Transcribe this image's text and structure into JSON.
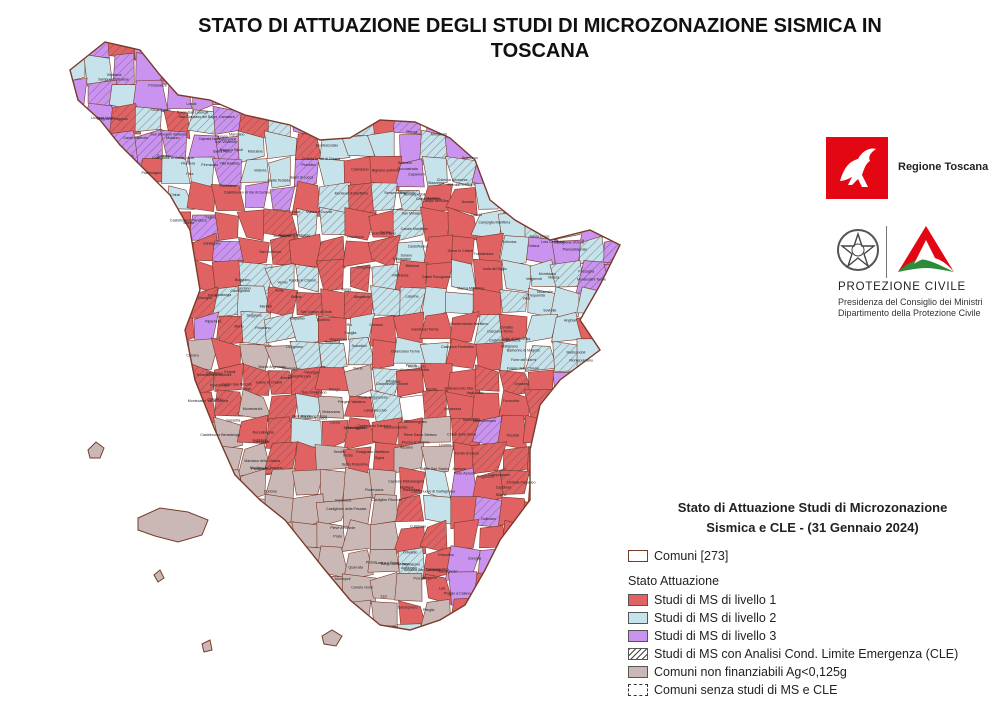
{
  "title": {
    "line1": "STATO DI ATTUAZIONE DEGLI STUDI DI MICROZONAZIONE SISMICA IN",
    "line2": "TOSCANA"
  },
  "logos": {
    "regione": {
      "name": "Regione Toscana",
      "icon": "pegasus-icon",
      "color": "#e30613"
    },
    "protezione": {
      "title": "PROTEZIONE CIVILE",
      "subtitle1": "Presidenza del Consiglio dei Ministri",
      "subtitle2": "Dipartimento della Protezione Civile",
      "icons": [
        "italian-republic-emblem-icon",
        "protezione-civile-icon"
      ]
    }
  },
  "legend": {
    "title1": "Stato di Attuazione Studi di Microzonazione",
    "title2": "Sismica e CLE - (31 Gennaio 2024)",
    "comuni_label": "Comuni [273]",
    "section_label": "Stato Attuazione",
    "items": [
      {
        "label": "Studi di MS di livello 1",
        "color": "#e06262"
      },
      {
        "label": "Studi di MS di livello 2",
        "color": "#c6e2ea"
      },
      {
        "label": "Studi di MS di livello 3",
        "color": "#c993ef"
      },
      {
        "label": "Studi di MS con Analisi Cond. Limite Emergenza (CLE)",
        "color": "hatch"
      },
      {
        "label": "Comuni non finanziabili Ag<0,125g",
        "color": "#c9b8b5"
      },
      {
        "label": "Comuni senza studi di MS e CLE",
        "color": "none"
      }
    ]
  },
  "map": {
    "status_colors": {
      "l1": "#e06262",
      "l2": "#c6e2ea",
      "l3": "#c993ef",
      "nf": "#c9b8b5",
      "none": "#ffffff",
      "border": "#7a3a2a"
    },
    "labels": [
      "Firenze",
      "Pisa",
      "Lucca",
      "Livorno",
      "Siena",
      "Arezzo",
      "Grosseto",
      "Prato",
      "Pistoia",
      "Massa",
      "Carrara",
      "Empoli",
      "Volterra",
      "Cortona",
      "Montalcino",
      "Orbetello",
      "Capalbio",
      "Piombino",
      "Follonica",
      "Montepulciano",
      "Poggibonsi",
      "Colle di Val d'Elsa",
      "Pontedera",
      "Cecina",
      "Portoferraio",
      "Massa Marittima",
      "Castiglione della Pescaia",
      "Monte Argentario",
      "Sansepolcro",
      "Bibbiena",
      "Poppi",
      "San Gimignano",
      "Capraia Isola",
      "Isola del Giglio",
      "Marciana",
      "Campo nell'Elba",
      "Porto Azzurro",
      "Rio",
      "Viareggio",
      "Pietrasanta",
      "Forte dei Marmi",
      "Barga",
      "Borgo San Lorenzo",
      "Marradi",
      "Firenzuola",
      "Castel del Piano",
      "Santa Fiora",
      "Pitigliano",
      "Sorano",
      "Chiusi",
      "Sinalunga",
      "Asciano",
      "Buonconvento",
      "Radicondoli",
      "Chiusdino",
      "Sovicille",
      "Monteriggioni",
      "Castellina in Chianti",
      "Radda in Chianti",
      "Gaiole in Chianti",
      "Bucine",
      "Montevarchi",
      "San Giovanni Valdarno",
      "Figline",
      "Pontassieve",
      "Dicomano",
      "Vicchio",
      "Scarperia",
      "Barberino di Mugello",
      "Vernio",
      "Cantagallo",
      "Sesto Fiorentino",
      "Calenzano",
      "Campi Bisenzio",
      "Scandicci",
      "Bagno a Ripoli",
      "Fiesole",
      "Greve in Chianti",
      "Impruneta",
      "Tavarnelle",
      "Certaldo",
      "Gambassi Terme",
      "Montaione",
      "Castelfiorentino",
      "Vinci",
      "Cerreto Guidi",
      "Fucecchio",
      "San Miniato",
      "Santa Croce",
      "Castelfranco",
      "Montopoli",
      "Palaia",
      "Peccioli",
      "Lajatico",
      "Terricciola",
      "Casciana Terme",
      "Lari",
      "Crespina",
      "Fauglia",
      "Collesalvetti",
      "Rosignano Marittimo",
      "Castellina Marittima",
      "Riparbella",
      "Montescudaio",
      "Guardistallo",
      "Casale Marittimo",
      "Bibbona",
      "Castagneto Carducci",
      "Sassetta",
      "Suvereto",
      "San Vincenzo",
      "Campiglia Marittima",
      "Monteverdi Marittimo",
      "Pomarance",
      "Castelnuovo di Val di Cecina",
      "Montecatini Val di Cecina",
      "Monterotondo Marittimo",
      "Montieri",
      "Roccastrada",
      "Gavorrano",
      "Scarlino",
      "Civitella Paganico",
      "Campagnatico",
      "Scansano",
      "Magliano in Toscana",
      "Manciano",
      "Semproniano",
      "Roccalbegna",
      "Arcidosso",
      "Seggiano",
      "Cinigiano",
      "Castell'Azzara",
      "Abbadia San Salvatore",
      "Piancastagnaio",
      "Radicofani",
      "San Casciano dei Bagni",
      "Cetona",
      "Sarteano",
      "Chianciano Terme",
      "Pienza",
      "San Quirico d'Orcia",
      "Castiglione d'Orcia",
      "Torrita di Siena",
      "Trequanda",
      "Rapolano Terme",
      "Castelnuovo Berardenga",
      "Monteroni d'Arbia",
      "Murlo",
      "Monticiano",
      "Foiano della Chiana",
      "Lucignano",
      "Marciano della Chiana",
      "Castiglion Fiorentino",
      "Monte San Savino",
      "Civitella in Val di Chiana",
      "Subbiano",
      "Capolona",
      "Castiglion Fibocchi",
      "Laterina",
      "Pergine Valdarno",
      "Loro Ciuffenna",
      "Terranuova Bracciolini",
      "Castelfranco Piandiscò",
      "Pratovecchio Stia",
      "Castel San Niccolò",
      "Montemignaio",
      "Ortignano Raggiolo",
      "Castel Focognano",
      "Chiusi della Verna",
      "Chitignano",
      "Caprese Michelangelo",
      "Anghiari",
      "Monterchi",
      "Pieve Santo Stefano",
      "Badia Tedalda",
      "Sestino",
      "Pratomagno",
      "Londa",
      "San Godenzo",
      "Rufina",
      "Pelago",
      "Reggello",
      "Rignano sull'Arno",
      "Incisa",
      "Cavriglia",
      "Montespertoli",
      "Lastra a Signa",
      "Signa",
      "Carmignano",
      "Poggio a Caiano",
      "Quarrata",
      "Serravalle Pistoiese",
      "Lamporecchio",
      "Larciano",
      "Monsummano",
      "Pieve a Nievole",
      "Montecatini Terme",
      "Massa e Cozzile",
      "Buggiano",
      "Uzzano",
      "Chiesina Uzzanese",
      "Ponte Buggianese",
      "Pescia",
      "Marliana",
      "Sambuca Pistoiese",
      "San Marcello",
      "Abetone",
      "Cutigliano",
      "Piteglio",
      "Bagni di Lucca",
      "Coreglia",
      "Fosciandora",
      "Castelnuovo di Garfagnana",
      "Castiglione di Garfagnana",
      "Piazza al Serchio",
      "Sillano",
      "Minucciano",
      "Careggine",
      "Vagli Sotto",
      "Camporgiano",
      "Molazzana",
      "Gallicano",
      "Vergemoli",
      "Stazzema",
      "Seravezza",
      "Camaiore",
      "Massarosa",
      "Capannori",
      "Altopascio",
      "Porcari",
      "Montecarlo",
      "Villa Basilica",
      "Borgo a Mozzano",
      "Pescaglia",
      "Aulla",
      "Pontremoli",
      "Zeri",
      "Mulazzo",
      "Filattiera",
      "Bagnone",
      "Villafranca",
      "Licciana Nardi",
      "Comano",
      "Fivizzano",
      "Casola",
      "Fosdinovo",
      "Tresana",
      "Podenzana",
      "Montignoso"
    ]
  }
}
